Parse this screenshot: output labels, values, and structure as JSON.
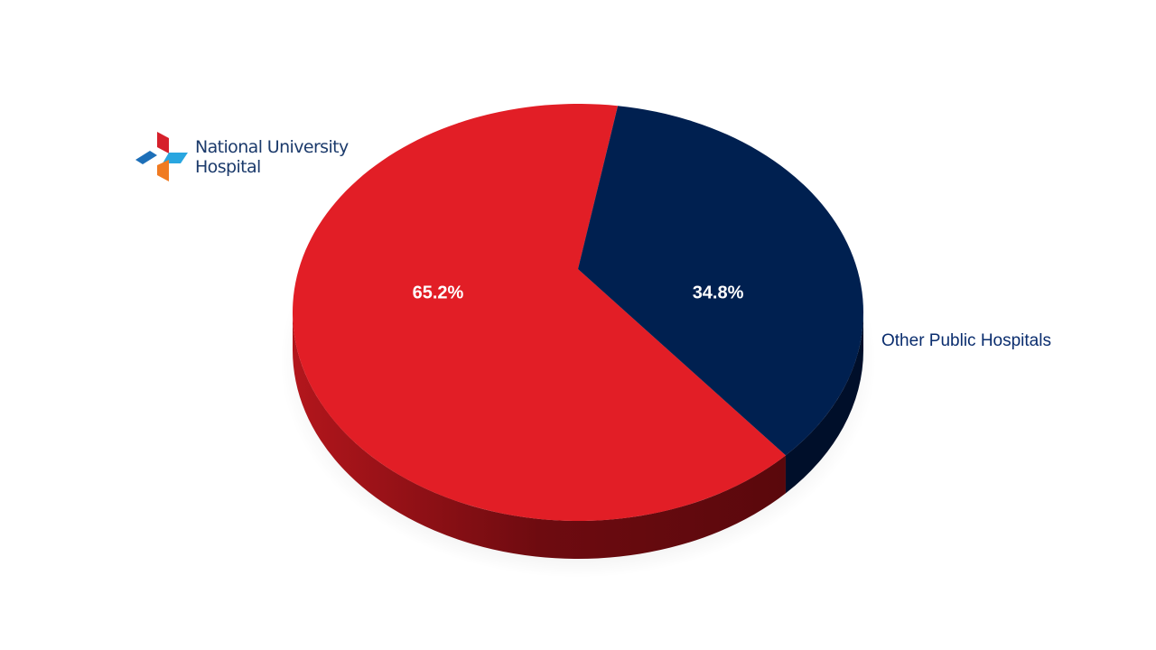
{
  "chart_data": {
    "type": "pie",
    "categories": [
      "National University Hospital",
      "Other Public Hospitals"
    ],
    "values": [
      65.2,
      34.8
    ],
    "value_labels": [
      "65.2%",
      "34.8%"
    ],
    "colors": [
      "#e21e26",
      "#002050"
    ]
  }
}
